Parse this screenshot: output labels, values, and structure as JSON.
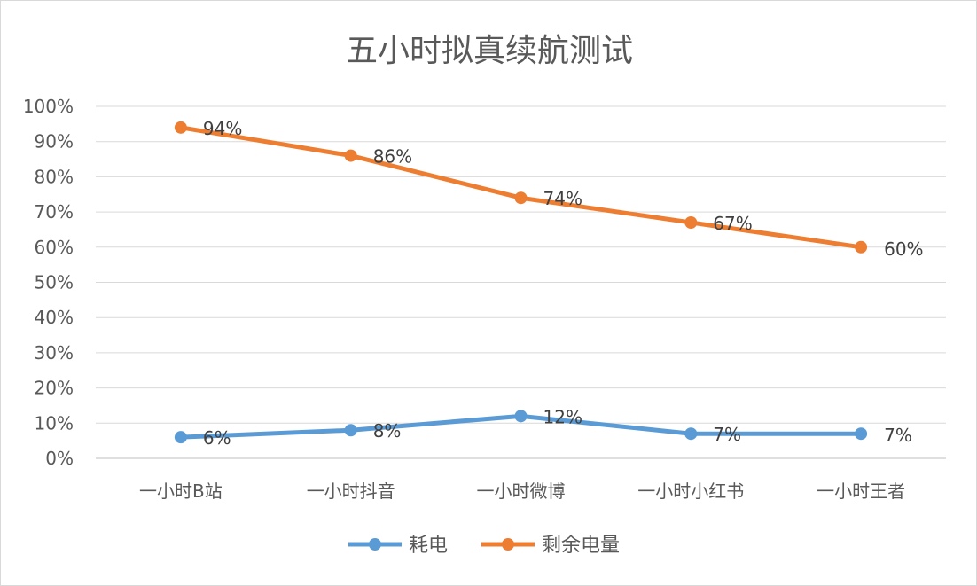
{
  "chart_data": {
    "type": "line",
    "title": "五小时拟真续航测试",
    "categories": [
      "一小时B站",
      "一小时抖音",
      "一小时微博",
      "一小时小红书",
      "一小时王者"
    ],
    "series": [
      {
        "name": "耗电",
        "values": [
          6,
          8,
          12,
          7,
          7
        ],
        "labels": [
          "6%",
          "8%",
          "12%",
          "7%",
          "7%"
        ],
        "color": "#5b9bd5"
      },
      {
        "name": "剩余电量",
        "values": [
          94,
          86,
          74,
          67,
          60
        ],
        "labels": [
          "94%",
          "86%",
          "74%",
          "67%",
          "60%"
        ],
        "color": "#ed7d31"
      }
    ],
    "ylim": [
      0,
      100
    ],
    "yticks": [
      "0%",
      "10%",
      "20%",
      "30%",
      "40%",
      "50%",
      "60%",
      "70%",
      "80%",
      "90%",
      "100%"
    ],
    "grid": true,
    "legend": "bottom"
  }
}
